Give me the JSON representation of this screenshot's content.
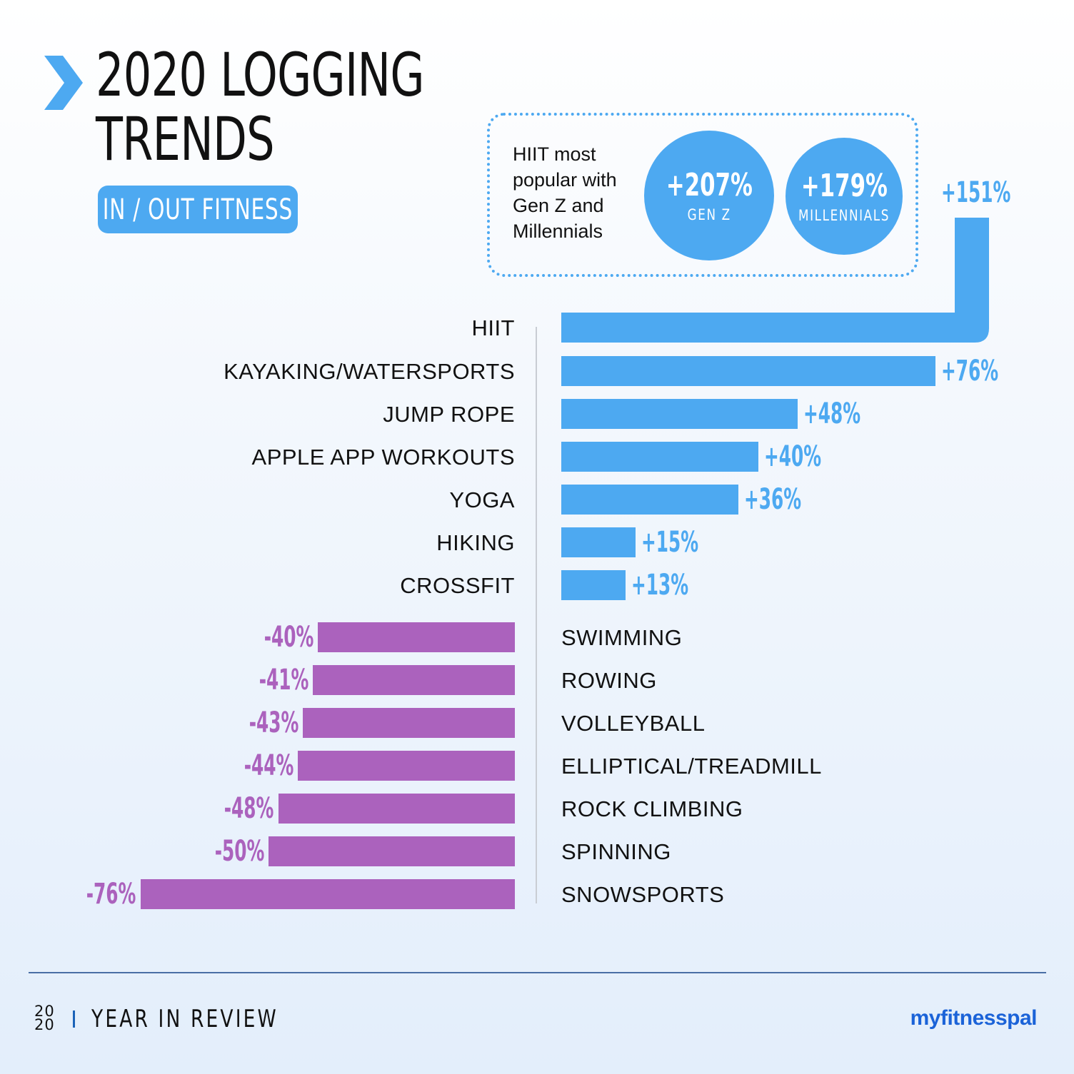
{
  "header": {
    "title_line1": "2020 LOGGING",
    "title_line2": "TRENDS",
    "pill_label": "IN / OUT FITNESS"
  },
  "callout": {
    "text": "HIIT most popular with Gen Z and Millennials",
    "circles": [
      {
        "value": "+207%",
        "label": "GEN Z"
      },
      {
        "value": "+179%",
        "label": "MILLENNIALS"
      }
    ]
  },
  "colors": {
    "positive": "#4da9f1",
    "negative": "#ab62bd",
    "positive_text": "#4da9f1",
    "negative_text": "#ab62bd"
  },
  "chart_data": {
    "type": "bar",
    "orientation": "horizontal",
    "title": "2020 LOGGING TRENDS",
    "subtitle": "IN / OUT FITNESS",
    "series": [
      {
        "sign": "positive",
        "categories": [
          "HIIT",
          "KAYAKING/WATERSPORTS",
          "JUMP ROPE",
          "APPLE APP WORKOUTS",
          "YOGA",
          "HIKING",
          "CROSSFIT"
        ],
        "values": [
          151,
          76,
          48,
          40,
          36,
          15,
          13
        ],
        "labels": [
          "+151%",
          "+76%",
          "+48%",
          "+40%",
          "+36%",
          "+15%",
          "+13%"
        ]
      },
      {
        "sign": "negative",
        "categories": [
          "SWIMMING",
          "ROWING",
          "VOLLEYBALL",
          "ELLIPTICAL/TREADMILL",
          "ROCK CLIMBING",
          "SPINNING",
          "SNOWSPORTS"
        ],
        "values": [
          -40,
          -41,
          -43,
          -44,
          -48,
          -50,
          -76
        ],
        "labels": [
          "-40%",
          "-41%",
          "-43%",
          "-44%",
          "-48%",
          "-50%",
          "-76%"
        ]
      }
    ]
  },
  "footer": {
    "year_top": "20",
    "year_bottom": "20",
    "review_label": "YEAR IN REVIEW",
    "brand": "myfitnesspal"
  }
}
